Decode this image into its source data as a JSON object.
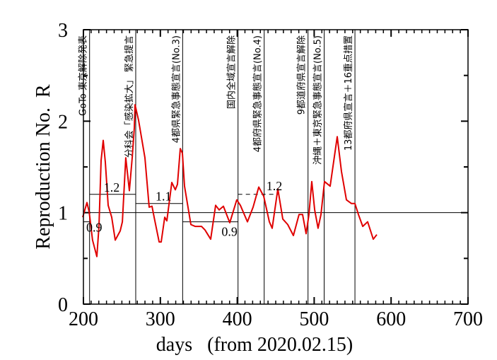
{
  "chart_data": {
    "type": "line",
    "title": "",
    "xlabel": "days   (from 2020.02.15)",
    "ylabel": "Reproduction No.  R",
    "xlim": [
      200,
      700
    ],
    "ylim": [
      0,
      3
    ],
    "x_ticks": [
      200,
      300,
      400,
      500,
      600,
      700
    ],
    "y_ticks": [
      0,
      1,
      2,
      3
    ],
    "x_tick_labels": [
      "200",
      "300",
      "400",
      "500",
      "600",
      "700"
    ],
    "y_tick_labels": [
      "0",
      "1",
      "2",
      "3"
    ],
    "grid": false,
    "reference_line": 1,
    "series": [
      {
        "name": "R",
        "color": "#e00000",
        "x": [
          199.1,
          204.6,
          207.4,
          211.9,
          217.5,
          220.2,
          223.0,
          225.7,
          228.5,
          232.2,
          236.8,
          241.4,
          247.8,
          250.6,
          255.1,
          259.7,
          263.4,
          266.2,
          267.1,
          271.7,
          280.0,
          285.5,
          289.2,
          291.9,
          298.4,
          301.1,
          305.7,
          308.5,
          314.9,
          319.5,
          322.2,
          325.9,
          328.7,
          331.4,
          339.7,
          345.2,
          353.5,
          358.1,
          365.4,
          371.9,
          376.5,
          382.0,
          390.3,
          399.4,
          404.0,
          413.2,
          420.6,
          427.9,
          434.4,
          441.7,
          445.4,
          452.8,
          459.2,
          465.6,
          473.0,
          480.3,
          484.9,
          489.5,
          493.2,
          496.9,
          500.6,
          505.1,
          508.8,
          513.4,
          520.8,
          530.0,
          535.5,
          541.9,
          548.3,
          552.9,
          557.5,
          563.1,
          569.5,
          576.8,
          581.4
        ],
        "y": [
          0.95,
          1.11,
          1.01,
          0.7,
          0.52,
          0.85,
          1.57,
          1.79,
          1.55,
          1.08,
          0.95,
          0.7,
          0.8,
          0.9,
          1.6,
          1.24,
          1.6,
          1.93,
          2.18,
          2.01,
          1.6,
          1.06,
          1.07,
          0.95,
          0.68,
          0.68,
          0.95,
          0.91,
          1.33,
          1.25,
          1.31,
          1.7,
          1.65,
          1.29,
          0.87,
          0.85,
          0.85,
          0.81,
          0.71,
          1.08,
          1.03,
          1.07,
          0.89,
          1.14,
          1.08,
          0.9,
          1.06,
          1.28,
          1.18,
          0.9,
          0.83,
          1.26,
          0.93,
          0.87,
          0.75,
          0.98,
          0.98,
          0.77,
          0.98,
          1.34,
          1.03,
          0.83,
          0.98,
          1.34,
          1.29,
          1.83,
          1.45,
          1.14,
          1.1,
          1.1,
          0.98,
          0.85,
          0.9,
          0.71,
          0.76
        ]
      }
    ],
    "events": [
      {
        "day": 208,
        "label": "GoTo 東京解除発表"
      },
      {
        "day": 268,
        "label": "分科会「感染拡大」 緊急提言"
      },
      {
        "day": 329,
        "label": "4都県緊急事態宣言(No.3)"
      },
      {
        "day": 401,
        "label": "国内全域宣言解除"
      },
      {
        "day": 435,
        "label": "4都府県緊急事態宣言(No.4)"
      },
      {
        "day": 492,
        "label": "9都道府県宣言解除"
      },
      {
        "day": 513,
        "label": "沖縄＋東京緊急事態宣言(No.5)"
      },
      {
        "day": 553,
        "label": "13都府県宣言＋16重点措置"
      }
    ],
    "levels": [
      {
        "from": 200,
        "to": 208,
        "value": 0.9,
        "label": "0.9",
        "dashed": false
      },
      {
        "from": 208,
        "to": 268,
        "value": 1.2,
        "label": "1.2",
        "dashed": false
      },
      {
        "from": 268,
        "to": 329,
        "value": 1.1,
        "label": "1.1",
        "dashed": false
      },
      {
        "from": 329,
        "to": 401,
        "value": 0.9,
        "label": "0.9",
        "dashed": false
      },
      {
        "from": 401,
        "to": 453,
        "value": 1.2,
        "label": "1.2",
        "dashed": true
      }
    ]
  }
}
